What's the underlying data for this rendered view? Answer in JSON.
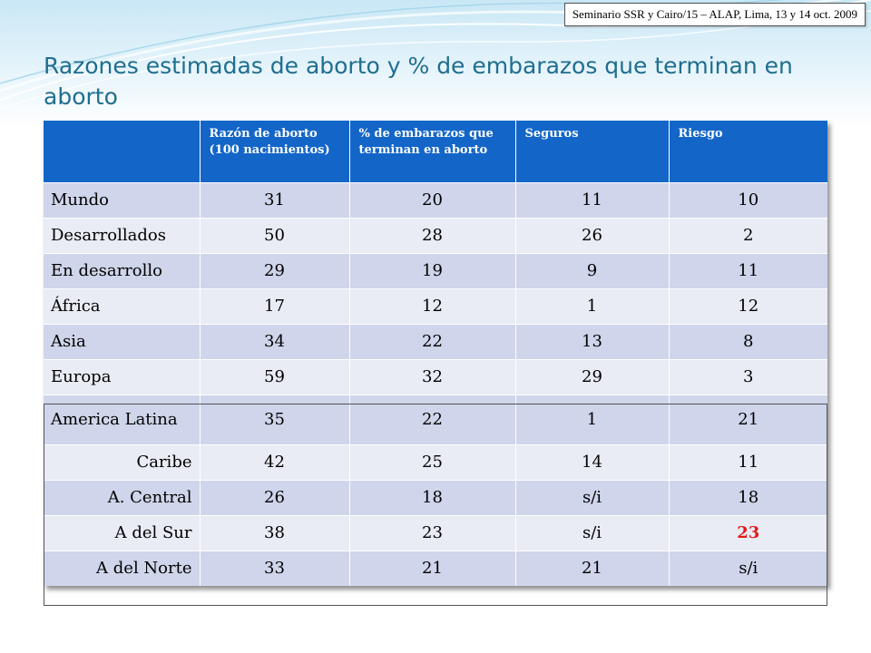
{
  "header": {
    "badge": "Seminario  SSR y Cairo/15 – ALAP, Lima,  13 y 14 oct. 2009"
  },
  "slide": {
    "title": "Razones estimadas de aborto y % de embarazos que terminan en aborto"
  },
  "table": {
    "columns": [
      "",
      "Razón de aborto (100 nacimientos)",
      "% de embarazos que terminan en aborto",
      "Seguros",
      "Riesgo"
    ],
    "rows": [
      {
        "region": "Mundo",
        "razon": "31",
        "porcentaje": "20",
        "seguros": "11",
        "riesgo": "10"
      },
      {
        "region": "Desarrollados",
        "razon": "50",
        "porcentaje": "28",
        "seguros": "26",
        "riesgo": "2"
      },
      {
        "region": "En desarrollo",
        "razon": "29",
        "porcentaje": "19",
        "seguros": "9",
        "riesgo": "11"
      },
      {
        "region": "África",
        "razon": "17",
        "porcentaje": "12",
        "seguros": "1",
        "riesgo": "12"
      },
      {
        "region": "Asia",
        "razon": "34",
        "porcentaje": "22",
        "seguros": "13",
        "riesgo": "8"
      },
      {
        "region": "Europa",
        "razon": "59",
        "porcentaje": "32",
        "seguros": "29",
        "riesgo": "3"
      },
      {
        "region": "America Latina",
        "razon": "35",
        "porcentaje": "22",
        "seguros": "1",
        "riesgo": "21"
      },
      {
        "region": "Caribe",
        "razon": "42",
        "porcentaje": "25",
        "seguros": "14",
        "riesgo": "11"
      },
      {
        "region": "A. Central",
        "razon": "26",
        "porcentaje": "18",
        "seguros": "s/i",
        "riesgo": "18"
      },
      {
        "region": "A del Sur",
        "razon": "38",
        "porcentaje": "23",
        "seguros": "s/i",
        "riesgo": "23"
      },
      {
        "region": "A del Norte",
        "razon": "33",
        "porcentaje": "21",
        "seguros": "21",
        "riesgo": "s/i"
      }
    ]
  },
  "colors": {
    "header_bg": "#1366c8",
    "row_dark": "#cfd5ea",
    "row_light": "#e9ebf5",
    "title": "#1f6e8f",
    "highlight": "#e21b1b"
  }
}
